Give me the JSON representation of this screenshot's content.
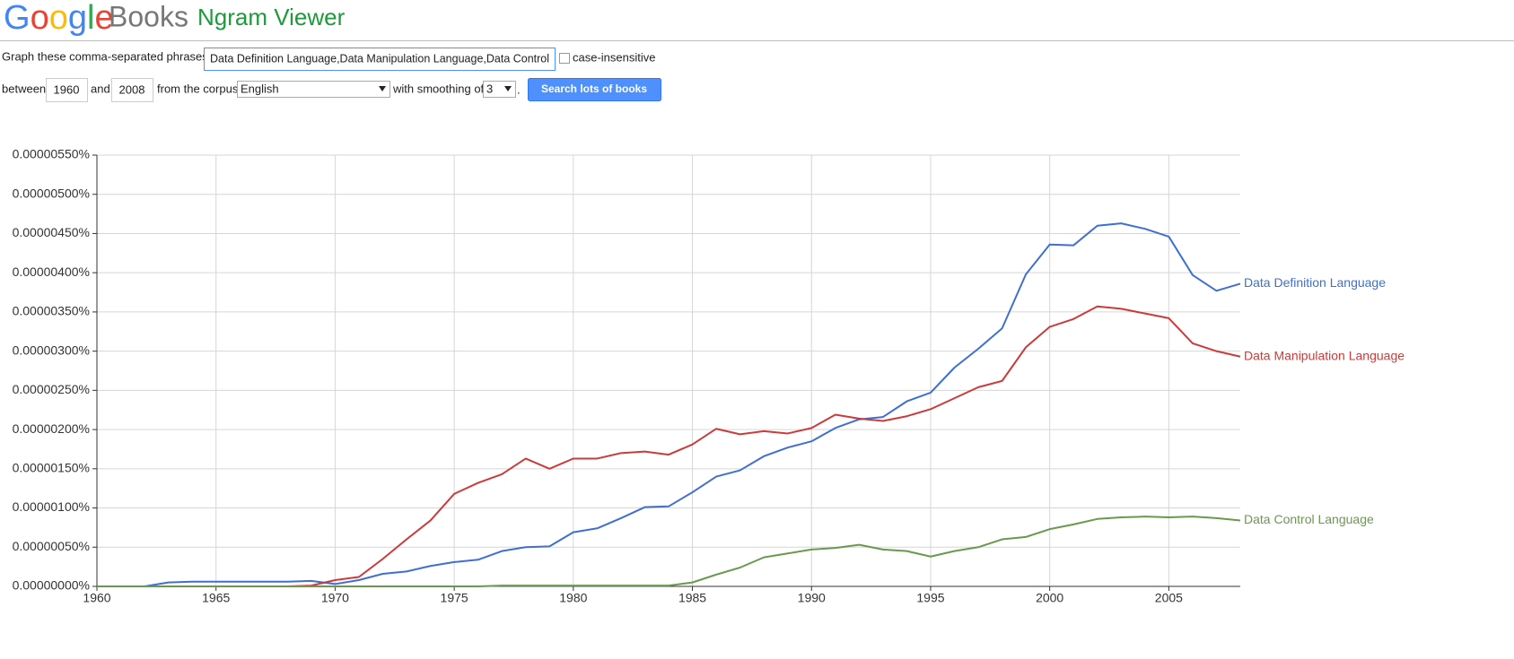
{
  "header": {
    "logo_google": "Google",
    "logo_books": "Books",
    "title": "Ngram Viewer"
  },
  "form": {
    "phrases_label": "Graph these comma-separated phrases:",
    "phrases_value": "Data Definition Language,Data Manipulation Language,Data Control",
    "case_label": "case-insensitive",
    "between_label": "between",
    "start_year": "1960",
    "and_label": "and",
    "end_year": "2008",
    "corpus_label": "from the corpus",
    "corpus": "English",
    "smoothing_label": "with smoothing of",
    "smoothing": "3",
    "period": ".",
    "search_button": "Search lots of books"
  },
  "chart_data": {
    "type": "line",
    "x": [
      1960,
      1961,
      1962,
      1963,
      1964,
      1965,
      1966,
      1967,
      1968,
      1969,
      1970,
      1971,
      1972,
      1973,
      1974,
      1975,
      1976,
      1977,
      1978,
      1979,
      1980,
      1981,
      1982,
      1983,
      1984,
      1985,
      1986,
      1987,
      1988,
      1989,
      1990,
      1991,
      1992,
      1993,
      1994,
      1995,
      1996,
      1997,
      1998,
      1999,
      2000,
      2001,
      2002,
      2003,
      2004,
      2005,
      2006,
      2007,
      2008
    ],
    "series": [
      {
        "name": "Data Definition Language",
        "color": "#3f6fd1",
        "values": [
          0,
          0,
          0,
          5e-08,
          6e-08,
          6e-08,
          6e-08,
          6e-08,
          6e-08,
          7e-08,
          3e-08,
          8e-08,
          1.6e-07,
          1.9e-07,
          2.6e-07,
          3.1e-07,
          3.4e-07,
          4.5e-07,
          5e-07,
          5.1e-07,
          6.9e-07,
          7.4e-07,
          8.7e-07,
          1.01e-06,
          1.02e-06,
          1.2e-06,
          1.4e-06,
          1.48e-06,
          1.66e-06,
          1.77e-06,
          1.85e-06,
          2.02e-06,
          2.13e-06,
          2.16e-06,
          2.36e-06,
          2.47e-06,
          2.79e-06,
          3.03e-06,
          3.29e-06,
          3.98e-06,
          4.36e-06,
          4.35e-06,
          4.6e-06,
          4.63e-06,
          4.56e-06,
          4.46e-06,
          3.97e-06,
          3.77e-06,
          3.86e-06
        ]
      },
      {
        "name": "Data Manipulation Language",
        "color": "#cc3b3b",
        "values": [
          0,
          0,
          0,
          0,
          0,
          0,
          0,
          0,
          0,
          1e-08,
          8e-08,
          1.2e-07,
          3.5e-07,
          6e-07,
          8.4e-07,
          1.18e-06,
          1.32e-06,
          1.43e-06,
          1.63e-06,
          1.5e-06,
          1.63e-06,
          1.63e-06,
          1.7e-06,
          1.72e-06,
          1.68e-06,
          1.81e-06,
          2.01e-06,
          1.94e-06,
          1.98e-06,
          1.95e-06,
          2.02e-06,
          2.19e-06,
          2.14e-06,
          2.11e-06,
          2.17e-06,
          2.26e-06,
          2.4e-06,
          2.54e-06,
          2.62e-06,
          3.05e-06,
          3.31e-06,
          3.41e-06,
          3.57e-06,
          3.54e-06,
          3.48e-06,
          3.42e-06,
          3.1e-06,
          3e-06,
          2.93e-06
        ]
      },
      {
        "name": "Data Control Language",
        "color": "#6a994e",
        "values": [
          0,
          0,
          0,
          0,
          0,
          0,
          0,
          0,
          0,
          0,
          0,
          0,
          0,
          0,
          0,
          0,
          0,
          1e-08,
          1e-08,
          1e-08,
          1e-08,
          1e-08,
          1e-08,
          1e-08,
          1e-08,
          5e-08,
          1.5e-07,
          2.4e-07,
          3.7e-07,
          4.2e-07,
          4.7e-07,
          4.9e-07,
          5.3e-07,
          4.7e-07,
          4.5e-07,
          3.8e-07,
          4.5e-07,
          5e-07,
          6e-07,
          6.3e-07,
          7.3e-07,
          7.9e-07,
          8.6e-07,
          8.8e-07,
          8.9e-07,
          8.8e-07,
          8.9e-07,
          8.7e-07,
          8.4e-07
        ]
      }
    ],
    "xlim": [
      1960,
      2008
    ],
    "xticks": [
      1960,
      1965,
      1970,
      1975,
      1980,
      1985,
      1990,
      1995,
      2000,
      2005
    ],
    "ylim": [
      0,
      5.5e-06
    ],
    "yticks": [
      {
        "value": 0,
        "label": "0.00000000%"
      },
      {
        "value": 5e-07,
        "label": "0.00000050%"
      },
      {
        "value": 1e-06,
        "label": "0.00000100%"
      },
      {
        "value": 1.5e-06,
        "label": "0.00000150%"
      },
      {
        "value": 2e-06,
        "label": "0.00000200%"
      },
      {
        "value": 2.5e-06,
        "label": "0.00000250%"
      },
      {
        "value": 3e-06,
        "label": "0.00000300%"
      },
      {
        "value": 3.5e-06,
        "label": "0.00000350%"
      },
      {
        "value": 4e-06,
        "label": "0.00000400%"
      },
      {
        "value": 4.5e-06,
        "label": "0.00000450%"
      },
      {
        "value": 5e-06,
        "label": "0.00000500%"
      },
      {
        "value": 5.5e-06,
        "label": "0.00000550%"
      }
    ],
    "grid": true
  }
}
